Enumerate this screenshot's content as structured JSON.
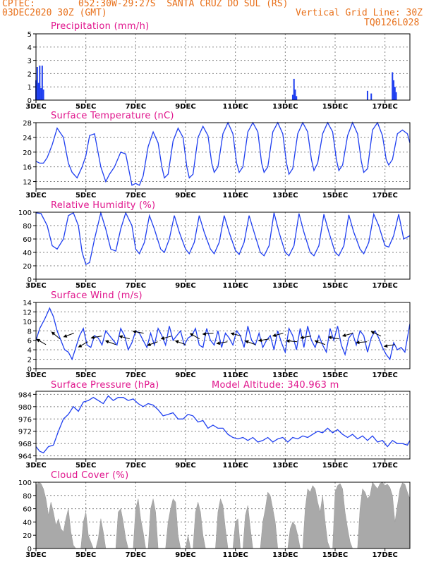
{
  "header": {
    "source_label": "CPTEC:",
    "location": "052:30W-29:27S  SANTA CRUZ DO SUL (RS)",
    "run": "03DEC2020 30Z (GMT)",
    "grid_note": "Vertical Grid Line: 30Z",
    "model_code": "TQ0126L028"
  },
  "colors": {
    "header": "#e8711c",
    "title": "#e0148c",
    "line": "#1f3ff0",
    "bars": "#1f3ff0",
    "cloud": "#a9a9a9",
    "wind_arrows": "#000000"
  },
  "x_ticks": [
    "3DEC",
    "5DEC",
    "7DEC",
    "9DEC",
    "11DEC",
    "13DEC",
    "15DEC",
    "17DEC"
  ],
  "x_range_days": [
    3,
    18
  ],
  "chart_data": [
    {
      "id": "precip",
      "type": "bar",
      "title": "Precipitation (mm/h)",
      "ylim": [
        0,
        5
      ],
      "yticks": [
        0,
        1,
        2,
        3,
        4,
        5
      ],
      "x": [
        3.0,
        3.05,
        3.1,
        3.15,
        3.2,
        3.25,
        3.3,
        13.3,
        13.35,
        13.4,
        13.45,
        16.3,
        16.45,
        17.3,
        17.35,
        17.4,
        17.45
      ],
      "values": [
        1.5,
        2.5,
        1.3,
        2.6,
        0.9,
        2.6,
        0.8,
        0.4,
        1.6,
        0.8,
        0.3,
        0.7,
        0.5,
        2.1,
        1.5,
        1.0,
        0.6
      ]
    },
    {
      "id": "temp",
      "type": "line",
      "title": "Surface Temperature (nC)",
      "ylim": [
        10,
        28
      ],
      "yticks": [
        12,
        16,
        20,
        24,
        28
      ],
      "x": [
        3.0,
        3.15,
        3.3,
        3.45,
        3.65,
        3.85,
        4.1,
        4.3,
        4.45,
        4.65,
        4.85,
        5.0,
        5.15,
        5.35,
        5.6,
        5.8,
        5.95,
        6.15,
        6.4,
        6.6,
        6.85,
        7.0,
        7.15,
        7.3,
        7.5,
        7.7,
        7.9,
        8.05,
        8.15,
        8.3,
        8.5,
        8.7,
        8.9,
        9.05,
        9.15,
        9.3,
        9.5,
        9.7,
        9.9,
        10.05,
        10.15,
        10.3,
        10.5,
        10.7,
        10.9,
        11.05,
        11.15,
        11.3,
        11.5,
        11.7,
        11.9,
        12.05,
        12.15,
        12.3,
        12.5,
        12.7,
        12.9,
        13.05,
        13.15,
        13.3,
        13.5,
        13.7,
        13.9,
        14.05,
        14.15,
        14.3,
        14.5,
        14.7,
        14.9,
        15.05,
        15.15,
        15.3,
        15.5,
        15.7,
        15.9,
        16.05,
        16.15,
        16.3,
        16.5,
        16.7,
        16.9,
        17.05,
        17.15,
        17.3,
        17.5,
        17.7,
        17.9,
        18.0
      ],
      "values": [
        17.5,
        17,
        17,
        18.5,
        22,
        26.5,
        24,
        17,
        14.5,
        13,
        16,
        19,
        24.5,
        25,
        16,
        12,
        14,
        16,
        20,
        19.5,
        11,
        11.5,
        11,
        13.5,
        21.5,
        25.5,
        22.5,
        16,
        13,
        14,
        23,
        26.5,
        24,
        16,
        13,
        14,
        24,
        27,
        24.5,
        17,
        14.5,
        16,
        25,
        28,
        25,
        17,
        14.5,
        16,
        25.5,
        28,
        25.5,
        17,
        14.5,
        16,
        25.5,
        28,
        25,
        17,
        14,
        15.5,
        25,
        28,
        25.5,
        18,
        15,
        17,
        25,
        28,
        25.5,
        18,
        15,
        16.5,
        24.5,
        28,
        25,
        17.5,
        14.5,
        15.5,
        26,
        28,
        24.5,
        18,
        16.5,
        18,
        25,
        26,
        25,
        22.5
      ]
    },
    {
      "id": "rh",
      "type": "line",
      "title": "Relative Humidity (%)",
      "ylim": [
        0,
        100
      ],
      "yticks": [
        0,
        20,
        40,
        60,
        80,
        100
      ],
      "x": [
        3.0,
        3.2,
        3.45,
        3.65,
        3.85,
        4.1,
        4.3,
        4.5,
        4.7,
        4.85,
        5.0,
        5.15,
        5.35,
        5.6,
        5.8,
        6.0,
        6.2,
        6.4,
        6.6,
        6.85,
        7.0,
        7.15,
        7.35,
        7.55,
        7.75,
        8.0,
        8.15,
        8.35,
        8.55,
        8.75,
        9.0,
        9.15,
        9.35,
        9.55,
        9.75,
        10.0,
        10.15,
        10.35,
        10.55,
        10.75,
        11.0,
        11.15,
        11.35,
        11.55,
        11.75,
        12.0,
        12.15,
        12.35,
        12.55,
        12.75,
        13.0,
        13.15,
        13.35,
        13.55,
        13.75,
        14.0,
        14.15,
        14.35,
        14.55,
        14.75,
        15.0,
        15.15,
        15.35,
        15.55,
        15.75,
        16.0,
        16.15,
        16.35,
        16.55,
        16.75,
        17.0,
        17.15,
        17.35,
        17.55,
        17.75,
        18.0
      ],
      "values": [
        99,
        98,
        80,
        50,
        45,
        60,
        95,
        99,
        80,
        40,
        22,
        25,
        60,
        99,
        75,
        45,
        42,
        75,
        99,
        80,
        45,
        38,
        55,
        95,
        75,
        45,
        40,
        60,
        95,
        70,
        45,
        38,
        55,
        95,
        70,
        45,
        38,
        55,
        95,
        70,
        43,
        37,
        55,
        95,
        70,
        40,
        35,
        50,
        99,
        70,
        40,
        35,
        50,
        98,
        70,
        40,
        35,
        50,
        97,
        70,
        40,
        35,
        50,
        96,
        70,
        45,
        38,
        55,
        97,
        80,
        50,
        48,
        65,
        97,
        60,
        65
      ]
    },
    {
      "id": "wind",
      "type": "line",
      "title": "Surface Wind (m/s)",
      "ylim": [
        0,
        14
      ],
      "yticks": [
        0,
        2,
        4,
        6,
        8,
        10,
        12,
        14
      ],
      "x": [
        3.0,
        3.15,
        3.35,
        3.55,
        3.7,
        3.85,
        4.0,
        4.15,
        4.3,
        4.45,
        4.6,
        4.75,
        4.9,
        5.05,
        5.2,
        5.35,
        5.5,
        5.65,
        5.8,
        5.95,
        6.1,
        6.25,
        6.4,
        6.55,
        6.7,
        6.85,
        7.0,
        7.15,
        7.3,
        7.45,
        7.6,
        7.75,
        7.9,
        8.05,
        8.2,
        8.35,
        8.5,
        8.65,
        8.8,
        8.95,
        9.1,
        9.25,
        9.4,
        9.55,
        9.7,
        9.85,
        10.0,
        10.15,
        10.3,
        10.45,
        10.6,
        10.75,
        10.9,
        11.05,
        11.2,
        11.35,
        11.5,
        11.65,
        11.8,
        11.95,
        12.1,
        12.25,
        12.4,
        12.55,
        12.7,
        12.85,
        13.0,
        13.15,
        13.3,
        13.45,
        13.6,
        13.75,
        13.9,
        14.05,
        14.2,
        14.35,
        14.5,
        14.65,
        14.8,
        14.95,
        15.1,
        15.25,
        15.4,
        15.55,
        15.7,
        15.85,
        16.0,
        16.15,
        16.3,
        16.45,
        16.6,
        16.75,
        16.9,
        17.05,
        17.2,
        17.35,
        17.5,
        17.65,
        17.8,
        18.0
      ],
      "values": [
        6,
        8.5,
        10.5,
        12.8,
        11,
        8,
        6,
        4,
        3.5,
        2,
        4.5,
        7,
        8.5,
        5,
        4.5,
        7,
        6.5,
        5,
        8,
        7,
        6,
        5,
        8.5,
        7,
        4,
        5.5,
        8,
        7.5,
        6,
        4.5,
        7.5,
        5,
        8.5,
        7,
        5,
        9,
        6,
        7,
        8,
        5,
        6.5,
        7,
        8.5,
        5,
        4.5,
        8.5,
        6,
        5,
        8,
        4.5,
        7.5,
        6.5,
        5,
        8,
        7,
        4.5,
        9,
        6,
        5,
        7.5,
        4.5,
        6,
        7,
        4,
        8,
        5.5,
        3.5,
        8.5,
        7,
        4,
        8.5,
        4.5,
        9,
        6,
        4.5,
        7,
        5,
        3.5,
        8.5,
        6,
        9,
        5,
        3,
        6.5,
        7.5,
        5,
        8,
        7,
        3.5,
        6.5,
        8,
        6.5,
        4.5,
        3,
        2,
        5.5,
        4,
        4.5,
        3.5,
        9.5
      ]
    },
    {
      "id": "pressure",
      "type": "line",
      "title": "Surface Pressure (hPa)",
      "annotation": "Model Altitude: 340.963 m",
      "ylim": [
        963,
        985
      ],
      "yticks": [
        964,
        968,
        972,
        976,
        980,
        984
      ],
      "x": [
        3.0,
        3.15,
        3.3,
        3.5,
        3.7,
        3.9,
        4.1,
        4.3,
        4.5,
        4.7,
        4.9,
        5.1,
        5.3,
        5.5,
        5.7,
        5.9,
        6.1,
        6.3,
        6.5,
        6.7,
        6.9,
        7.1,
        7.3,
        7.5,
        7.7,
        7.9,
        8.1,
        8.3,
        8.5,
        8.7,
        8.9,
        9.1,
        9.3,
        9.5,
        9.7,
        9.9,
        10.1,
        10.3,
        10.5,
        10.7,
        10.9,
        11.1,
        11.3,
        11.5,
        11.7,
        11.9,
        12.1,
        12.3,
        12.5,
        12.7,
        12.9,
        13.1,
        13.3,
        13.5,
        13.7,
        13.9,
        14.1,
        14.3,
        14.5,
        14.7,
        14.9,
        15.1,
        15.3,
        15.5,
        15.7,
        15.9,
        16.1,
        16.3,
        16.5,
        16.7,
        16.9,
        17.1,
        17.3,
        17.5,
        17.7,
        17.9,
        18.0
      ],
      "values": [
        967,
        965.5,
        965,
        967,
        967.5,
        972,
        976,
        977.5,
        980,
        978.5,
        981.5,
        982,
        983,
        982,
        981,
        983.5,
        982,
        983,
        983,
        982,
        982.5,
        981,
        980,
        981,
        980.5,
        979,
        977,
        977.5,
        978,
        976,
        976,
        977.5,
        977,
        975,
        975.5,
        973,
        974,
        973,
        973,
        971,
        970,
        969.5,
        970,
        969,
        970,
        968.5,
        969,
        970,
        968.5,
        969.5,
        970,
        968.5,
        970,
        969.5,
        970.5,
        970,
        971,
        972,
        971.5,
        973,
        971.5,
        972.5,
        971,
        970,
        971,
        969.5,
        970.5,
        969,
        970.5,
        968.5,
        969,
        967,
        969,
        968,
        968,
        967.5,
        969
      ]
    },
    {
      "id": "cloud",
      "type": "area",
      "title": "Cloud Cover (%)",
      "ylim": [
        0,
        100
      ],
      "yticks": [
        0,
        20,
        40,
        60,
        80,
        100
      ],
      "x": [
        3.0,
        3.1,
        3.2,
        3.3,
        3.4,
        3.5,
        3.6,
        3.7,
        3.8,
        3.9,
        4.0,
        4.1,
        4.2,
        4.3,
        4.4,
        4.5,
        4.6,
        4.7,
        4.8,
        4.9,
        5.0,
        5.1,
        5.2,
        5.3,
        5.4,
        5.5,
        5.6,
        5.7,
        5.8,
        5.9,
        6.0,
        6.1,
        6.2,
        6.3,
        6.4,
        6.5,
        6.6,
        6.7,
        6.8,
        6.9,
        7.0,
        7.1,
        7.2,
        7.3,
        7.4,
        7.5,
        7.6,
        7.7,
        7.8,
        7.9,
        8.0,
        8.1,
        8.2,
        8.3,
        8.4,
        8.5,
        8.6,
        8.7,
        8.8,
        8.9,
        9.0,
        9.1,
        9.2,
        9.3,
        9.4,
        9.5,
        9.6,
        9.7,
        9.8,
        9.9,
        10.0,
        10.1,
        10.2,
        10.3,
        10.4,
        10.5,
        10.6,
        10.7,
        10.8,
        10.9,
        11.0,
        11.1,
        11.2,
        11.3,
        11.4,
        11.5,
        11.6,
        11.7,
        11.8,
        11.9,
        12.0,
        12.1,
        12.2,
        12.3,
        12.4,
        12.5,
        12.6,
        12.7,
        12.8,
        12.9,
        13.0,
        13.1,
        13.2,
        13.3,
        13.4,
        13.5,
        13.6,
        13.7,
        13.8,
        13.9,
        14.0,
        14.1,
        14.2,
        14.3,
        14.4,
        14.5,
        14.6,
        14.7,
        14.8,
        14.9,
        15.0,
        15.1,
        15.2,
        15.3,
        15.4,
        15.5,
        15.6,
        15.7,
        15.8,
        15.9,
        16.0,
        16.1,
        16.2,
        16.3,
        16.4,
        16.5,
        16.6,
        16.7,
        16.8,
        16.9,
        17.0,
        17.1,
        17.2,
        17.3,
        17.4,
        17.5,
        17.6,
        17.7,
        17.8,
        17.9,
        18.0
      ],
      "values": [
        95,
        100,
        98,
        90,
        75,
        50,
        70,
        55,
        35,
        45,
        30,
        25,
        45,
        60,
        25,
        5,
        0,
        0,
        0,
        40,
        55,
        20,
        10,
        0,
        0,
        15,
        45,
        25,
        0,
        0,
        0,
        0,
        0,
        55,
        60,
        40,
        15,
        0,
        0,
        0,
        60,
        75,
        45,
        25,
        0,
        0,
        60,
        75,
        55,
        0,
        0,
        0,
        0,
        40,
        60,
        75,
        70,
        20,
        0,
        0,
        0,
        20,
        0,
        0,
        55,
        70,
        55,
        20,
        0,
        0,
        0,
        0,
        0,
        55,
        75,
        65,
        30,
        0,
        0,
        0,
        40,
        45,
        0,
        0,
        50,
        65,
        30,
        0,
        0,
        0,
        0,
        40,
        60,
        85,
        80,
        60,
        40,
        0,
        0,
        0,
        0,
        0,
        30,
        40,
        35,
        20,
        0,
        0,
        60,
        90,
        85,
        95,
        90,
        70,
        55,
        80,
        40,
        10,
        0,
        0,
        85,
        95,
        98,
        90,
        55,
        30,
        10,
        0,
        0,
        0,
        60,
        90,
        85,
        75,
        80,
        100,
        95,
        90,
        98,
        100,
        95,
        97,
        92,
        80,
        40,
        65,
        90,
        99,
        97,
        85,
        75
      ]
    }
  ]
}
